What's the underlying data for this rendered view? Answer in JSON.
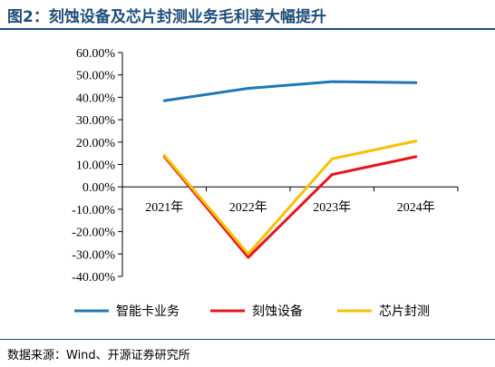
{
  "figure": {
    "title": "图2：刻蚀设备及芯片封测业务毛利率大幅提升",
    "source": "数据来源：Wind、开源证券研究所"
  },
  "colors": {
    "title": "#1f4e79",
    "series": [
      "#1f77b4",
      "#e8141b",
      "#f5c100"
    ]
  },
  "chart_data": {
    "type": "line",
    "categories": [
      "2021年",
      "2022年",
      "2023年",
      "2024年"
    ],
    "ylim": [
      -40,
      60
    ],
    "yticks": [
      60,
      50,
      40,
      30,
      20,
      10,
      0,
      -10,
      -20,
      -30,
      -40
    ],
    "ytick_labels": [
      "60.00%",
      "50.00%",
      "40.00%",
      "30.00%",
      "20.00%",
      "10.00%",
      "0.00%",
      "-10.00%",
      "-20.00%",
      "-30.00%",
      "-40.00%"
    ],
    "xlabel": "",
    "ylabel": "",
    "grid": false,
    "legend_position": "bottom",
    "series": [
      {
        "name": "智能卡业务",
        "color": "#1f77b4",
        "values": [
          38.5,
          44.0,
          47.0,
          46.5
        ]
      },
      {
        "name": "刻蚀设备",
        "color": "#e8141b",
        "values": [
          13.5,
          -31.5,
          5.5,
          13.5
        ]
      },
      {
        "name": "芯片封测",
        "color": "#f5c100",
        "values": [
          14.0,
          -30.0,
          12.5,
          20.5
        ]
      }
    ]
  }
}
